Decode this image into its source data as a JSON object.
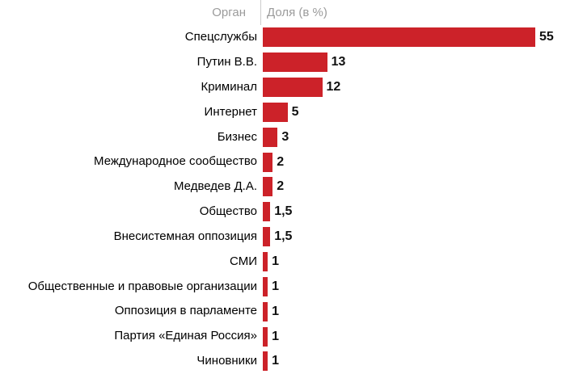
{
  "header": {
    "organ_label": "Орган",
    "share_label": "Доля (в %)"
  },
  "colors": {
    "bar": "#cc2229",
    "header_text": "#9b9b9b",
    "divider": "#cccccc",
    "label_text": "#000000",
    "value_text": "#111111"
  },
  "chart_data": {
    "type": "bar",
    "orientation": "horizontal",
    "title": "",
    "xlabel": "Доля (в %)",
    "ylabel": "Орган",
    "xlim": [
      0,
      55
    ],
    "grid": false,
    "legend": false,
    "categories": [
      "Спецслужбы",
      "Путин В.В.",
      "Криминал",
      "Интернет",
      "Бизнес",
      "Международное сообщество",
      "Медведев Д.А.",
      "Общество",
      "Внесистемная оппозиция",
      "СМИ",
      "Общественные и правовые организации",
      "Оппозиция в парламенте",
      "Партия «Единая Россия»",
      "Чиновники"
    ],
    "values": [
      55,
      13,
      12,
      5,
      3,
      2,
      2,
      1.5,
      1.5,
      1,
      1,
      1,
      1,
      1
    ],
    "value_labels": [
      "55",
      "13",
      "12",
      "5",
      "3",
      "2",
      "2",
      "1,5",
      "1,5",
      "1",
      "1",
      "1",
      "1",
      "1"
    ]
  }
}
